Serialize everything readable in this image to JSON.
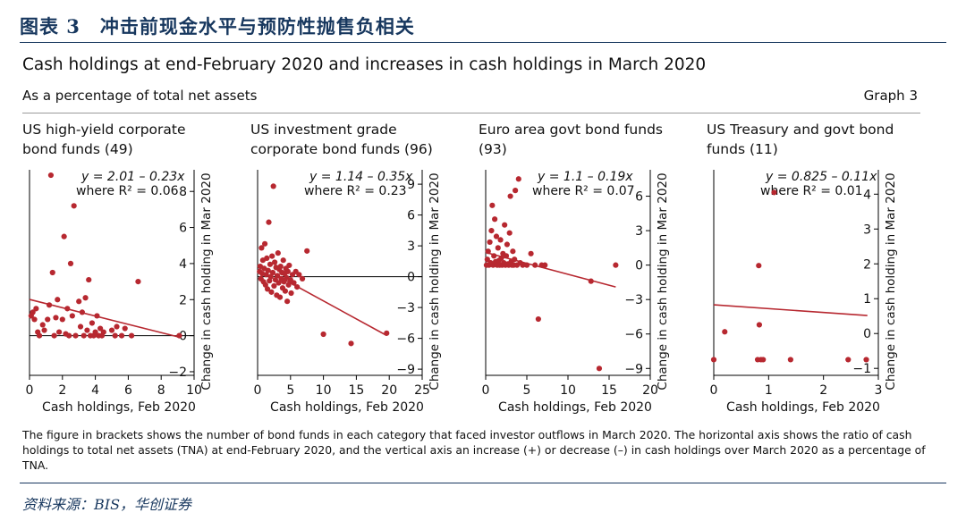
{
  "figure_label": "图表 3　冲击前现金水平与预防性抛售负相关",
  "title": "Cash holdings at end-February 2020 and increases in cash holdings in March 2020",
  "subtitle": "As a percentage of total net assets",
  "graph_number": "Graph 3",
  "note": "The figure in brackets shows the number of bond funds in each category that faced investor outflows in March 2020. The horizontal axis shows the ratio of cash holdings to total net assets (TNA) at end-February 2020, and the vertical axis an increase (+) or decrease (–) in cash holdings over March 2020 as a percentage of TNA.",
  "source": "资料来源：BIS，华创证券",
  "colors": {
    "points": "#b72830",
    "fit_line": "#b72830",
    "axis": "#000000",
    "heading": "#17375e"
  },
  "chart_data": [
    {
      "type": "scatter",
      "title_lines": [
        "US high-yield corporate",
        "bond funds (49)"
      ],
      "xlabel": "Cash holdings, Feb 2020",
      "ylabel": "Change in cash holding in Mar 2020",
      "xlim": [
        0,
        10
      ],
      "ylim": [
        -2.2,
        9.2
      ],
      "xticks": [
        0,
        2,
        4,
        6,
        8,
        10
      ],
      "yticks": [
        -2,
        0,
        2,
        4,
        6,
        8
      ],
      "ytick_labels": [
        "−2",
        "0",
        "2",
        "4",
        "6",
        "8"
      ],
      "zero_line": true,
      "equation": "y = 2.01 – 0.23x",
      "r2": "where R² = 0.06",
      "fit": {
        "intercept": 2.01,
        "slope": -0.23,
        "x_range": [
          0,
          9.2
        ]
      },
      "points": [
        [
          0.1,
          1.1
        ],
        [
          0.2,
          1.3
        ],
        [
          0.3,
          0.9
        ],
        [
          0.4,
          1.5
        ],
        [
          0.5,
          0.2
        ],
        [
          0.6,
          0.0
        ],
        [
          0.8,
          0.6
        ],
        [
          0.9,
          0.3
        ],
        [
          1.1,
          0.9
        ],
        [
          1.2,
          1.7
        ],
        [
          1.3,
          8.9
        ],
        [
          1.4,
          3.5
        ],
        [
          1.5,
          0.0
        ],
        [
          1.6,
          1.0
        ],
        [
          1.7,
          2.0
        ],
        [
          1.8,
          0.2
        ],
        [
          2.0,
          0.9
        ],
        [
          2.1,
          5.5
        ],
        [
          2.2,
          0.1
        ],
        [
          2.3,
          1.5
        ],
        [
          2.4,
          0.0
        ],
        [
          2.5,
          4.0
        ],
        [
          2.6,
          1.1
        ],
        [
          2.7,
          7.2
        ],
        [
          2.8,
          0.0
        ],
        [
          3.0,
          1.9
        ],
        [
          3.1,
          0.5
        ],
        [
          3.2,
          1.3
        ],
        [
          3.3,
          0.0
        ],
        [
          3.4,
          2.1
        ],
        [
          3.5,
          0.3
        ],
        [
          3.6,
          3.1
        ],
        [
          3.7,
          0.0
        ],
        [
          3.8,
          0.7
        ],
        [
          3.9,
          0.0
        ],
        [
          4.0,
          0.2
        ],
        [
          4.1,
          1.1
        ],
        [
          4.2,
          0.0
        ],
        [
          4.3,
          0.4
        ],
        [
          4.4,
          0.0
        ],
        [
          4.5,
          0.2
        ],
        [
          5.0,
          0.3
        ],
        [
          5.2,
          0.0
        ],
        [
          5.3,
          0.5
        ],
        [
          5.6,
          0.0
        ],
        [
          5.8,
          0.4
        ],
        [
          6.2,
          0.0
        ],
        [
          6.6,
          3.0
        ],
        [
          9.1,
          0.0
        ]
      ]
    },
    {
      "type": "scatter",
      "title_lines": [
        "US investment grade",
        "corporate bond funds (96)"
      ],
      "xlabel": "Cash holdings, Feb 2020",
      "ylabel": "Change in cash holding in Mar 2020",
      "xlim": [
        0,
        25
      ],
      "ylim": [
        -9.6,
        10.4
      ],
      "xticks": [
        0,
        5,
        10,
        15,
        20,
        25
      ],
      "yticks": [
        -9,
        -6,
        -3,
        0,
        3,
        6,
        9
      ],
      "ytick_labels": [
        "−9",
        "−6",
        "−3",
        "0",
        "3",
        "6",
        "9"
      ],
      "zero_line": true,
      "equation": "y = 1.14 – 0.35x",
      "r2": "where R² = 0.23",
      "fit": {
        "intercept": 1.14,
        "slope": -0.35,
        "x_range": [
          0,
          19.6
        ]
      },
      "points": [
        [
          0.3,
          0.5
        ],
        [
          0.4,
          1.0
        ],
        [
          0.5,
          -0.2
        ],
        [
          0.6,
          2.8
        ],
        [
          0.7,
          0.3
        ],
        [
          0.8,
          1.6
        ],
        [
          0.9,
          -0.5
        ],
        [
          1.0,
          0.8
        ],
        [
          1.1,
          3.2
        ],
        [
          1.2,
          -0.8
        ],
        [
          1.3,
          0.2
        ],
        [
          1.4,
          1.8
        ],
        [
          1.5,
          -1.2
        ],
        [
          1.6,
          0.6
        ],
        [
          1.7,
          5.3
        ],
        [
          1.8,
          -0.4
        ],
        [
          1.9,
          1.2
        ],
        [
          2.0,
          0.0
        ],
        [
          2.1,
          -1.5
        ],
        [
          2.2,
          2.0
        ],
        [
          2.3,
          0.4
        ],
        [
          2.4,
          8.8
        ],
        [
          2.5,
          -0.9
        ],
        [
          2.6,
          1.4
        ],
        [
          2.7,
          -0.3
        ],
        [
          2.8,
          0.9
        ],
        [
          2.9,
          -1.8
        ],
        [
          3.0,
          0.1
        ],
        [
          3.1,
          2.3
        ],
        [
          3.2,
          -0.6
        ],
        [
          3.3,
          0.7
        ],
        [
          3.4,
          -2.0
        ],
        [
          3.5,
          1.0
        ],
        [
          3.6,
          -0.2
        ],
        [
          3.7,
          0.4
        ],
        [
          3.8,
          -1.1
        ],
        [
          3.9,
          1.6
        ],
        [
          4.0,
          -0.5
        ],
        [
          4.1,
          0.3
        ],
        [
          4.2,
          -1.4
        ],
        [
          4.3,
          0.8
        ],
        [
          4.4,
          -0.1
        ],
        [
          4.5,
          -2.4
        ],
        [
          4.6,
          0.5
        ],
        [
          4.7,
          -0.8
        ],
        [
          4.8,
          1.1
        ],
        [
          5.0,
          -0.3
        ],
        [
          5.1,
          -1.6
        ],
        [
          5.3,
          0.2
        ],
        [
          5.5,
          -0.6
        ],
        [
          5.8,
          0.5
        ],
        [
          6.0,
          -1.0
        ],
        [
          6.3,
          0.2
        ],
        [
          6.8,
          -0.2
        ],
        [
          7.5,
          2.5
        ],
        [
          10.0,
          -5.6
        ],
        [
          14.2,
          -6.5
        ],
        [
          19.6,
          -5.5
        ]
      ]
    },
    {
      "type": "scatter",
      "title_lines": [
        "Euro area govt bond funds",
        "(93)"
      ],
      "xlabel": "Cash holdings, Feb 2020",
      "ylabel": "Change in cash holding in Mar 2020",
      "xlim": [
        0,
        20
      ],
      "ylim": [
        -9.6,
        8.3
      ],
      "xticks": [
        0,
        5,
        10,
        15,
        20
      ],
      "yticks": [
        -9,
        -6,
        -3,
        0,
        3,
        6
      ],
      "ytick_labels": [
        "−9",
        "−6",
        "−3",
        "0",
        "3",
        "6"
      ],
      "zero_line": false,
      "equation": "y = 1.1 – 0.19x",
      "r2": "where R² = 0.07",
      "fit": {
        "intercept": 1.1,
        "slope": -0.19,
        "x_range": [
          0,
          15.8
        ]
      },
      "points": [
        [
          0.1,
          0.0
        ],
        [
          0.2,
          0.5
        ],
        [
          0.3,
          1.2
        ],
        [
          0.4,
          0.0
        ],
        [
          0.5,
          2.0
        ],
        [
          0.6,
          0.2
        ],
        [
          0.7,
          3.0
        ],
        [
          0.8,
          5.2
        ],
        [
          0.9,
          0.0
        ],
        [
          1.0,
          0.8
        ],
        [
          1.1,
          4.0
        ],
        [
          1.2,
          0.3
        ],
        [
          1.3,
          2.5
        ],
        [
          1.4,
          0.0
        ],
        [
          1.5,
          1.5
        ],
        [
          1.6,
          0.4
        ],
        [
          1.7,
          0.0
        ],
        [
          1.8,
          2.2
        ],
        [
          1.9,
          0.6
        ],
        [
          2.0,
          0.0
        ],
        [
          2.1,
          1.0
        ],
        [
          2.2,
          0.2
        ],
        [
          2.3,
          3.5
        ],
        [
          2.4,
          0.0
        ],
        [
          2.5,
          0.8
        ],
        [
          2.6,
          1.8
        ],
        [
          2.7,
          0.1
        ],
        [
          2.8,
          0.0
        ],
        [
          2.9,
          2.8
        ],
        [
          3.0,
          6.0
        ],
        [
          3.1,
          0.3
        ],
        [
          3.2,
          0.0
        ],
        [
          3.3,
          1.2
        ],
        [
          3.4,
          0.0
        ],
        [
          3.5,
          0.5
        ],
        [
          3.6,
          6.5
        ],
        [
          3.8,
          0.0
        ],
        [
          4.0,
          7.5
        ],
        [
          4.2,
          0.2
        ],
        [
          4.5,
          0.0
        ],
        [
          5.0,
          0.0
        ],
        [
          5.5,
          1.0
        ],
        [
          6.0,
          0.0
        ],
        [
          6.4,
          -4.7
        ],
        [
          6.8,
          0.0
        ],
        [
          7.2,
          0.0
        ],
        [
          12.8,
          -1.4
        ],
        [
          13.8,
          -9.0
        ],
        [
          15.8,
          0.0
        ]
      ]
    },
    {
      "type": "scatter",
      "title_lines": [
        "US Treasury and govt bond",
        "funds (11)"
      ],
      "xlabel": "Cash holdings, Feb 2020",
      "ylabel": "Change in cash holding in Mar 2020",
      "xlim": [
        0,
        3
      ],
      "ylim": [
        -1.2,
        4.7
      ],
      "xticks": [
        0,
        1,
        2,
        3
      ],
      "yticks": [
        -1,
        0,
        1,
        2,
        3,
        4
      ],
      "ytick_labels": [
        "−1",
        "0",
        "1",
        "2",
        "3",
        "4"
      ],
      "zero_line": false,
      "equation": "y = 0.825 – 0.11x",
      "r2": "where R² = 0.01",
      "fit": {
        "intercept": 0.825,
        "slope": -0.11,
        "x_range": [
          0,
          2.8
        ]
      },
      "points": [
        [
          0.0,
          -0.75
        ],
        [
          0.2,
          0.05
        ],
        [
          0.8,
          -0.75
        ],
        [
          0.82,
          1.95
        ],
        [
          0.83,
          0.25
        ],
        [
          0.86,
          -0.75
        ],
        [
          0.9,
          -0.75
        ],
        [
          1.1,
          4.05
        ],
        [
          1.4,
          -0.75
        ],
        [
          2.45,
          -0.75
        ],
        [
          2.78,
          -0.75
        ]
      ]
    }
  ]
}
